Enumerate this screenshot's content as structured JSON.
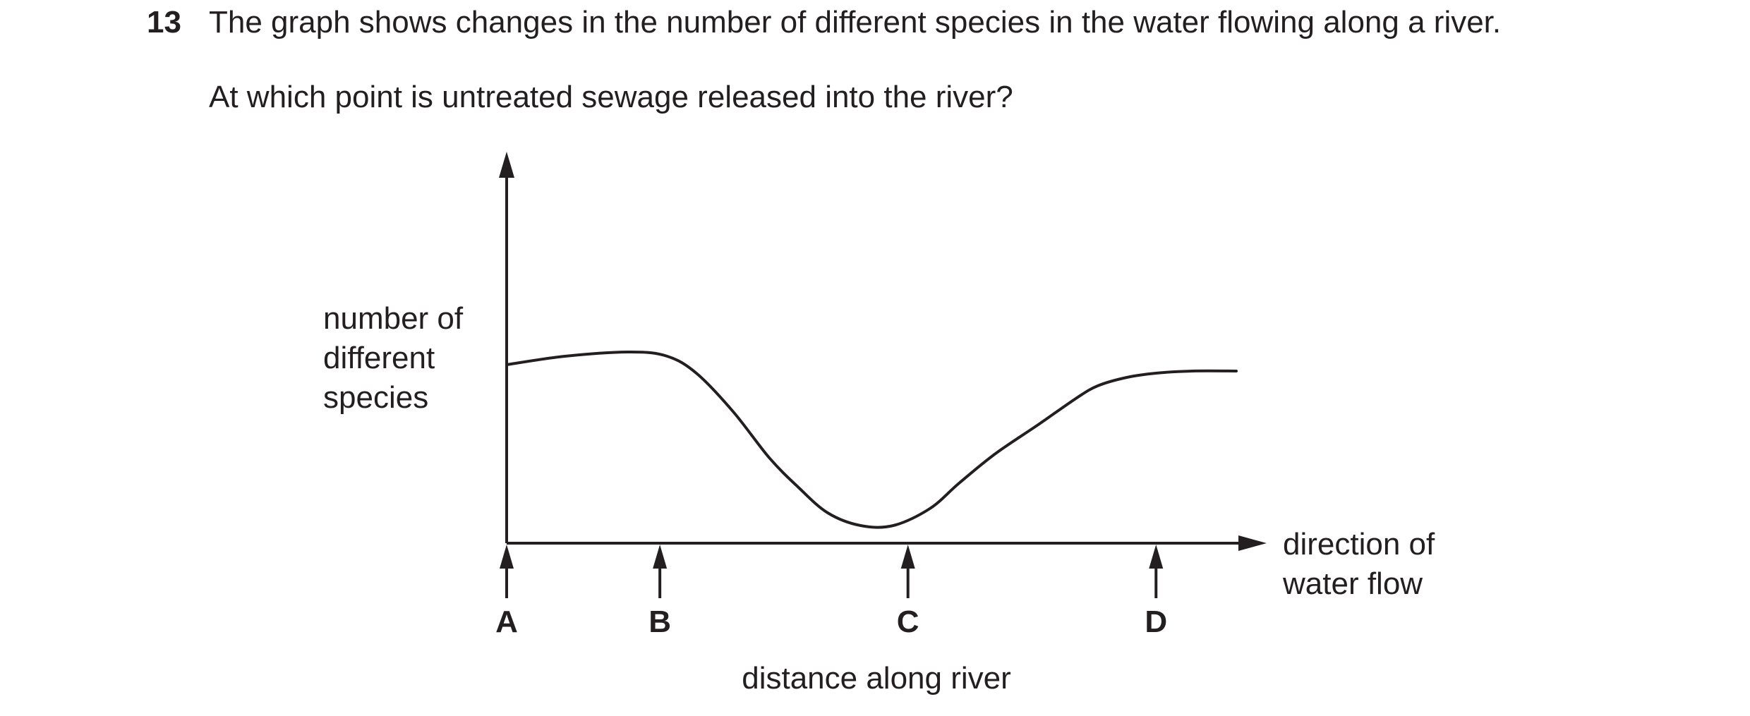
{
  "question": {
    "number": "13",
    "stem": "The graph shows changes in the number of different species in the water flowing along a river.",
    "prompt": "At which point is untreated sewage released into the river?"
  },
  "chart_data": {
    "type": "line",
    "title": "",
    "ylabel": [
      "number of",
      "different",
      "species"
    ],
    "xlabel": "distance along river",
    "x_direction_label": [
      "direction of",
      "water flow"
    ],
    "axis_numbers_shown": false,
    "grid": false,
    "x_markers": [
      {
        "label": "A",
        "x": 0
      },
      {
        "label": "B",
        "x": 21
      },
      {
        "label": "C",
        "x": 55
      },
      {
        "label": "D",
        "x": 89
      }
    ],
    "xlim": [
      0,
      100
    ],
    "ylim": [
      0,
      100
    ],
    "series": [
      {
        "x": [
          0,
          8,
          17,
          22,
          26,
          31,
          36,
          40,
          44,
          48.5,
          53,
          58,
          62,
          67,
          73,
          78,
          81,
          85,
          89,
          94,
          100
        ],
        "y": [
          33,
          35,
          36,
          35,
          31,
          22,
          11,
          4,
          -2,
          -5,
          -5,
          -1,
          5,
          12,
          19,
          25,
          28,
          30,
          31,
          31.5,
          31.5
        ]
      }
    ],
    "color": "#231f20"
  }
}
